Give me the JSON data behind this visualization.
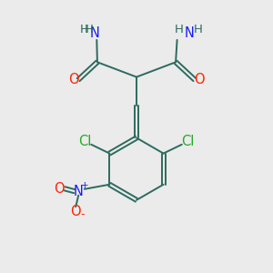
{
  "bg_color": "#ebebeb",
  "bond_color": "#2d6b5e",
  "atom_colors": {
    "N": "#1a1aff",
    "O": "#ff2200",
    "Cl": "#22aa22",
    "H": "#2d6b5e",
    "C": "#2d6b5e"
  },
  "font_size": 10.5,
  "bond_lw": 1.4
}
